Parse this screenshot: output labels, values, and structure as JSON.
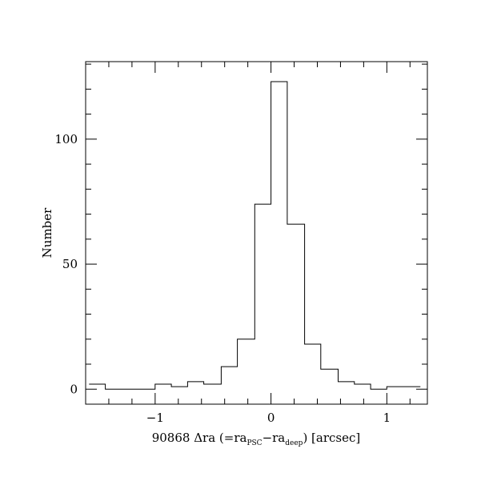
{
  "chart_data": {
    "type": "histogram",
    "xlabel": {
      "prefix": "90868 Δra (=ra",
      "sub1": "PSC",
      "mid": "−ra",
      "sub2": "deep",
      "suffix": ") [arcsec]"
    },
    "ylabel": "Number",
    "xlim": [
      -1.6,
      1.35
    ],
    "ylim": [
      -6,
      131
    ],
    "xticks_major": [
      -1,
      0,
      1
    ],
    "xtick_labels": [
      "−1",
      "0",
      "1"
    ],
    "yticks_major": [
      0,
      50,
      100
    ],
    "ytick_labels": [
      "0",
      "50",
      "100"
    ],
    "bin_edges": [
      -1.57,
      -1.43,
      -1.29,
      -1.15,
      -1.0,
      -0.86,
      -0.72,
      -0.58,
      -0.43,
      -0.29,
      -0.14,
      0.0,
      0.14,
      0.29,
      0.43,
      0.58,
      0.72,
      0.86,
      1.0,
      1.15,
      1.29
    ],
    "counts": [
      2,
      0,
      0,
      0,
      2,
      1,
      3,
      2,
      9,
      20,
      74,
      123,
      66,
      18,
      8,
      3,
      2,
      0,
      1,
      1
    ],
    "grid": false,
    "legend": "none"
  }
}
